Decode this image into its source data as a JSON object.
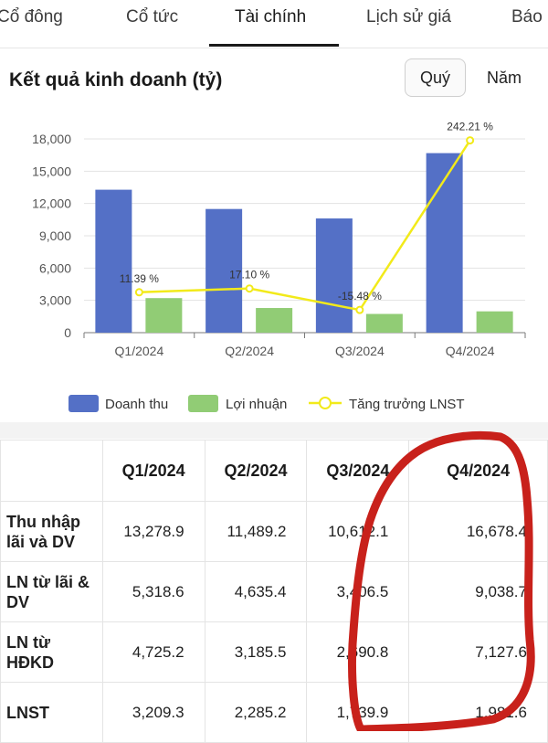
{
  "tabs": [
    "Cổ đông",
    "Cổ tức",
    "Tài chính",
    "Lịch sử giá",
    "Báo"
  ],
  "active_tab": "Tài chính",
  "section": {
    "title": "Kết quả kinh doanh (tỷ)",
    "period_selected": "Quý",
    "period_other": "Năm"
  },
  "chart_data": {
    "type": "bar",
    "categories": [
      "Q1/2024",
      "Q2/2024",
      "Q3/2024",
      "Q4/2024"
    ],
    "series": [
      {
        "name": "Doanh thu",
        "kind": "bar",
        "color": "#5470c6",
        "values": [
          13280,
          11490,
          10610,
          16680
        ]
      },
      {
        "name": "Lợi nhuận",
        "kind": "bar",
        "color": "#91cc75",
        "values": [
          3210,
          2290,
          1740,
          1980
        ]
      },
      {
        "name": "Tăng trưởng LNST",
        "kind": "line",
        "color": "#f2ea1a",
        "values": [
          11.39,
          17.1,
          -15.48,
          242.21
        ],
        "labels": [
          "11.39 %",
          "17.10 %",
          "-15.48 %",
          "242.21 %"
        ]
      }
    ],
    "ylim": [
      0,
      18000
    ],
    "yticks": [
      "0",
      "3,000",
      "6,000",
      "9,000",
      "12,000",
      "15,000",
      "18,000"
    ],
    "grid": true,
    "legend": "bottom"
  },
  "table": {
    "headers": [
      "",
      "Q1/2024",
      "Q2/2024",
      "Q3/2024",
      "Q4/2024"
    ],
    "rows": [
      {
        "label_lines": [
          "Thu nhập",
          "lãi và DV"
        ],
        "values": [
          "13,278.9",
          "11,489.2",
          "10,612.1",
          "16,678.4"
        ]
      },
      {
        "label_lines": [
          "LN từ lãi &",
          "DV"
        ],
        "values": [
          "5,318.6",
          "4,635.4",
          "3,406.5",
          "9,038.7"
        ]
      },
      {
        "label_lines": [
          "LN từ",
          "HĐKD"
        ],
        "values": [
          "4,725.2",
          "3,185.5",
          "2,690.8",
          "7,127.6"
        ]
      },
      {
        "label_lines": [
          "LNST",
          ""
        ],
        "values": [
          "3,209.3",
          "2,285.2",
          "1,739.9",
          "1,981.6"
        ]
      }
    ]
  },
  "colors": {
    "annotation": "#c8211b"
  }
}
